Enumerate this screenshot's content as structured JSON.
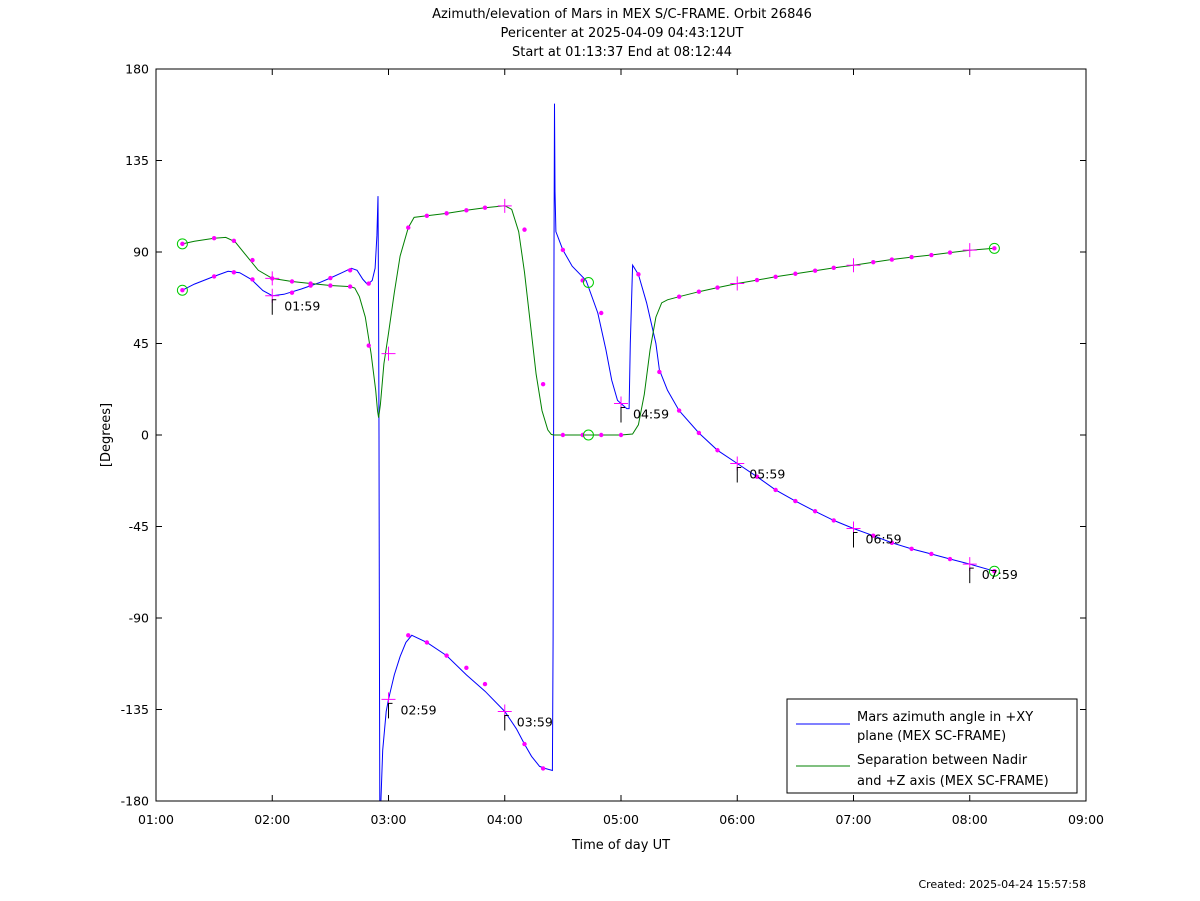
{
  "chart_data": {
    "type": "line",
    "title": [
      "Azimuth/elevation of Mars in MEX S/C-FRAME.  Orbit 26846",
      "Pericenter at 2025-04-09 04:43:12UT",
      "Start at 01:13:37 End at 08:12:44"
    ],
    "xlabel": "Time of day UT",
    "ylabel": "[Degrees]",
    "xlim": [
      1.0,
      9.0
    ],
    "ylim": [
      -180,
      180
    ],
    "x_ticks": [
      1,
      2,
      3,
      4,
      5,
      6,
      7,
      8,
      9
    ],
    "x_tick_labels": [
      "01:00",
      "02:00",
      "03:00",
      "04:00",
      "05:00",
      "06:00",
      "07:00",
      "08:00",
      "09:00"
    ],
    "y_ticks": [
      180,
      135,
      90,
      45,
      0,
      -45,
      -90,
      -135,
      -180
    ],
    "y_tick_labels": [
      "180",
      "135",
      "90",
      "45",
      "0",
      "-45",
      "-90",
      "-135",
      "-180"
    ],
    "grid": false,
    "legend_position": "bottom-right",
    "series": [
      {
        "name": "Mars azimuth angle in +XY plane (MEX SC-FRAME)",
        "legend_lines": [
          "Mars azimuth angle in +XY",
          "plane (MEX SC-FRAME)"
        ],
        "color": "#0000ff",
        "segments": [
          [
            [
              1.227,
              71.2
            ],
            [
              1.33,
              74.2
            ],
            [
              1.5,
              78.0
            ],
            [
              1.62,
              80.5
            ],
            [
              1.72,
              79.8
            ],
            [
              1.82,
              76.5
            ],
            [
              1.92,
              71.0
            ],
            [
              2.0,
              68.5
            ],
            [
              2.1,
              69.2
            ],
            [
              2.25,
              71.8
            ],
            [
              2.4,
              74.8
            ],
            [
              2.5,
              77.2
            ],
            [
              2.6,
              79.8
            ],
            [
              2.68,
              82.0
            ],
            [
              2.73,
              81.0
            ],
            [
              2.78,
              76.5
            ],
            [
              2.82,
              74.0
            ],
            [
              2.86,
              76.0
            ],
            [
              2.885,
              82.0
            ],
            [
              2.9,
              98.0
            ],
            [
              2.91,
              117.5
            ],
            [
              2.915,
              60.0
            ],
            [
              2.918,
              0.0
            ],
            [
              2.922,
              -100.0
            ],
            [
              2.925,
              -180.0
            ]
          ],
          [
            [
              2.935,
              -180.0
            ],
            [
              2.95,
              -155.0
            ],
            [
              2.98,
              -136.0
            ],
            [
              3.0,
              -130.0
            ],
            [
              3.05,
              -118.0
            ],
            [
              3.1,
              -109.0
            ],
            [
              3.15,
              -102.0
            ],
            [
              3.2,
              -98.5
            ],
            [
              3.33,
              -102.0
            ],
            [
              3.5,
              -108.5
            ],
            [
              3.67,
              -118.0
            ],
            [
              3.83,
              -126.0
            ],
            [
              4.0,
              -136.0
            ],
            [
              4.1,
              -144.5
            ],
            [
              4.17,
              -152.0
            ],
            [
              4.23,
              -158.0
            ],
            [
              4.3,
              -163.0
            ],
            [
              4.35,
              -164.0
            ],
            [
              4.41,
              -165.0
            ],
            [
              4.416,
              -100.0
            ],
            [
              4.42,
              0.0
            ],
            [
              4.424,
              90.0
            ],
            [
              4.428,
              163.0
            ],
            [
              4.432,
              120.0
            ],
            [
              4.44,
              100.0
            ],
            [
              4.5,
              91.0
            ],
            [
              4.58,
              83.0
            ],
            [
              4.7,
              76.0
            ],
            [
              4.8,
              60.0
            ],
            [
              4.87,
              42.0
            ],
            [
              4.92,
              27.0
            ],
            [
              4.97,
              17.0
            ],
            [
              5.0,
              15.5
            ],
            [
              5.05,
              13.0
            ],
            [
              5.07,
              13.0
            ],
            [
              5.08,
              45.0
            ],
            [
              5.1,
              83.5
            ],
            [
              5.15,
              79.0
            ],
            [
              5.22,
              65.0
            ],
            [
              5.3,
              45.0
            ],
            [
              5.33,
              32.0
            ],
            [
              5.4,
              22.0
            ],
            [
              5.5,
              12.0
            ],
            [
              5.67,
              1.0
            ],
            [
              5.83,
              -7.5
            ],
            [
              6.0,
              -14.0
            ],
            [
              6.17,
              -20.5
            ],
            [
              6.33,
              -27.0
            ],
            [
              6.5,
              -32.5
            ],
            [
              6.67,
              -37.5
            ],
            [
              6.83,
              -42.0
            ],
            [
              7.0,
              -46.0
            ],
            [
              7.17,
              -49.5
            ],
            [
              7.33,
              -53.0
            ],
            [
              7.5,
              -56.0
            ],
            [
              7.67,
              -58.5
            ],
            [
              7.83,
              -61.0
            ],
            [
              8.0,
              -63.5
            ],
            [
              8.212,
              -67.0
            ]
          ]
        ]
      },
      {
        "name": "Separation between Nadir and +Z axis (MEX SC-FRAME)",
        "legend_lines": [
          "Separation between Nadir",
          "and +Z axis (MEX SC-FRAME)"
        ],
        "color": "#008000",
        "segments": [
          [
            [
              1.227,
              94.0
            ],
            [
              1.33,
              95.3
            ],
            [
              1.5,
              96.8
            ],
            [
              1.6,
              97.2
            ],
            [
              1.68,
              95.0
            ],
            [
              1.78,
              88.0
            ],
            [
              1.88,
              81.0
            ],
            [
              2.0,
              77.0
            ],
            [
              2.17,
              75.5
            ],
            [
              2.33,
              74.5
            ],
            [
              2.5,
              73.5
            ],
            [
              2.67,
              73.0
            ],
            [
              2.71,
              72.3
            ],
            [
              2.75,
              68.0
            ],
            [
              2.8,
              58.0
            ],
            [
              2.85,
              40.0
            ],
            [
              2.89,
              22.0
            ],
            [
              2.905,
              12.0
            ],
            [
              2.915,
              8.5
            ],
            [
              2.93,
              15.0
            ],
            [
              2.96,
              35.0
            ],
            [
              3.0,
              50.0
            ],
            [
              3.05,
              70.0
            ],
            [
              3.1,
              88.0
            ],
            [
              3.17,
              102.0
            ],
            [
              3.22,
              107.0
            ],
            [
              3.33,
              107.8
            ],
            [
              3.5,
              109.0
            ],
            [
              3.67,
              110.5
            ],
            [
              3.83,
              111.8
            ],
            [
              4.0,
              112.7
            ],
            [
              4.06,
              111.0
            ],
            [
              4.12,
              100.0
            ],
            [
              4.17,
              80.0
            ],
            [
              4.22,
              55.0
            ],
            [
              4.27,
              30.0
            ],
            [
              4.32,
              12.0
            ],
            [
              4.37,
              2.5
            ],
            [
              4.4,
              0.3
            ],
            [
              4.42,
              0.0
            ],
            [
              5.0,
              0.0
            ],
            [
              5.1,
              0.5
            ],
            [
              5.15,
              5.0
            ],
            [
              5.2,
              20.0
            ],
            [
              5.25,
              42.0
            ],
            [
              5.3,
              58.0
            ],
            [
              5.35,
              65.0
            ],
            [
              5.4,
              66.5
            ],
            [
              5.5,
              68.0
            ],
            [
              5.67,
              70.5
            ],
            [
              5.83,
              72.5
            ],
            [
              6.0,
              74.5
            ],
            [
              6.17,
              76.2
            ],
            [
              6.33,
              77.8
            ],
            [
              6.5,
              79.3
            ],
            [
              6.67,
              80.8
            ],
            [
              6.83,
              82.2
            ],
            [
              7.0,
              83.5
            ],
            [
              7.17,
              85.0
            ],
            [
              7.33,
              86.3
            ],
            [
              7.5,
              87.5
            ],
            [
              7.67,
              88.5
            ],
            [
              7.83,
              89.7
            ],
            [
              8.0,
              90.9
            ],
            [
              8.212,
              91.8
            ]
          ]
        ]
      }
    ],
    "markers": {
      "dot_color": "#ff00ff",
      "dots": [
        [
          1.227,
          94.0
        ],
        [
          1.5,
          96.8
        ],
        [
          1.67,
          95.5
        ],
        [
          1.83,
          86.0
        ],
        [
          2.0,
          77.0
        ],
        [
          2.17,
          75.5
        ],
        [
          2.33,
          74.5
        ],
        [
          2.5,
          73.5
        ],
        [
          2.67,
          73.0
        ],
        [
          2.83,
          44.0
        ],
        [
          3.17,
          102.0
        ],
        [
          3.33,
          107.8
        ],
        [
          3.5,
          109.0
        ],
        [
          3.67,
          110.5
        ],
        [
          3.83,
          111.8
        ],
        [
          4.17,
          101.0
        ],
        [
          4.33,
          25.0
        ],
        [
          4.5,
          0.0
        ],
        [
          4.67,
          0.0
        ],
        [
          4.83,
          0.0
        ],
        [
          5.0,
          0.0
        ],
        [
          5.5,
          68.0
        ],
        [
          5.67,
          70.5
        ],
        [
          5.83,
          72.5
        ],
        [
          6.17,
          76.2
        ],
        [
          6.33,
          77.8
        ],
        [
          6.5,
          79.3
        ],
        [
          6.67,
          80.8
        ],
        [
          6.83,
          82.2
        ],
        [
          7.17,
          85.0
        ],
        [
          7.33,
          86.3
        ],
        [
          7.5,
          87.5
        ],
        [
          7.67,
          88.5
        ],
        [
          7.83,
          89.7
        ],
        [
          8.212,
          91.8
        ],
        [
          1.227,
          71.2
        ],
        [
          1.5,
          78.0
        ],
        [
          1.67,
          80.0
        ],
        [
          1.83,
          76.5
        ],
        [
          2.17,
          70.0
        ],
        [
          2.33,
          73.5
        ],
        [
          2.5,
          77.2
        ],
        [
          2.67,
          81.0
        ],
        [
          2.83,
          74.5
        ],
        [
          3.17,
          -98.5
        ],
        [
          3.33,
          -102.0
        ],
        [
          3.5,
          -108.5
        ],
        [
          3.67,
          -114.5
        ],
        [
          3.83,
          -122.5
        ],
        [
          4.17,
          -152.0
        ],
        [
          4.33,
          -164.0
        ],
        [
          4.5,
          91.0
        ],
        [
          4.67,
          76.0
        ],
        [
          4.83,
          60.0
        ],
        [
          5.15,
          79.0
        ],
        [
          5.33,
          31.0
        ],
        [
          5.5,
          12.0
        ],
        [
          5.67,
          1.0
        ],
        [
          5.83,
          -7.5
        ],
        [
          6.17,
          -20.5
        ],
        [
          6.33,
          -27.0
        ],
        [
          6.5,
          -32.5
        ],
        [
          6.67,
          -37.5
        ],
        [
          6.83,
          -42.0
        ],
        [
          7.17,
          -49.5
        ],
        [
          7.33,
          -53.0
        ],
        [
          7.5,
          -56.0
        ],
        [
          7.67,
          -58.5
        ],
        [
          7.83,
          -61.0
        ],
        [
          8.212,
          -67.0
        ]
      ],
      "crosses": [
        [
          2.0,
          77.0
        ],
        [
          2.0,
          68.5
        ],
        [
          3.0,
          40.0
        ],
        [
          3.0,
          -130.0
        ],
        [
          4.0,
          112.7
        ],
        [
          4.0,
          -136.0
        ],
        [
          5.0,
          15.5
        ],
        [
          6.0,
          -14.0
        ],
        [
          7.0,
          -46.0
        ],
        [
          7.0,
          83.5
        ],
        [
          6.0,
          74.5
        ],
        [
          8.0,
          -63.5
        ],
        [
          8.0,
          90.9
        ]
      ],
      "circle_color": "#00cc00",
      "circles": [
        [
          1.227,
          94.0
        ],
        [
          1.227,
          71.2
        ],
        [
          4.72,
          0.0
        ],
        [
          4.72,
          75.0
        ],
        [
          8.212,
          91.8
        ],
        [
          8.212,
          -67.0
        ]
      ]
    },
    "annotations": [
      {
        "x": 2.0,
        "y": 68.5,
        "text": "01:59"
      },
      {
        "x": 3.0,
        "y": -130.0,
        "text": "02:59"
      },
      {
        "x": 4.0,
        "y": -136.0,
        "text": "03:59"
      },
      {
        "x": 5.0,
        "y": 15.5,
        "text": "04:59"
      },
      {
        "x": 6.0,
        "y": -14.0,
        "text": "05:59"
      },
      {
        "x": 7.0,
        "y": -46.0,
        "text": "06:59"
      },
      {
        "x": 8.0,
        "y": -63.5,
        "text": "07:59"
      }
    ]
  },
  "footer": {
    "created": "Created: 2025-04-24 15:57:58"
  }
}
